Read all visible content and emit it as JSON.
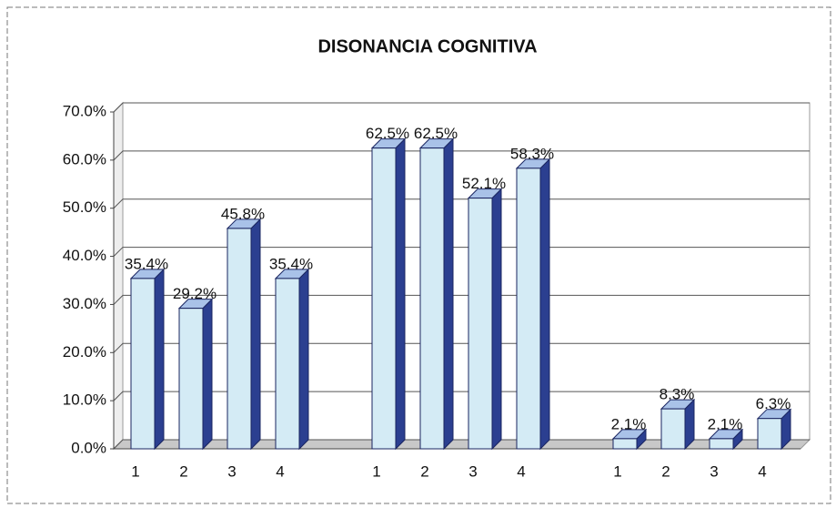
{
  "chart_data": {
    "type": "bar3d",
    "title": "DISONANCIA COGNITIVA",
    "categories": [
      "1",
      "2",
      "3",
      "4",
      "1",
      "2",
      "3",
      "4",
      "1",
      "2",
      "3",
      "4"
    ],
    "values": [
      35.4,
      29.2,
      45.8,
      35.4,
      62.5,
      62.5,
      52.1,
      58.3,
      2.1,
      8.3,
      2.1,
      6.3
    ],
    "value_labels": [
      "35.4%",
      "29.2%",
      "45.8%",
      "35.4%",
      "62.5%",
      "62.5%",
      "52.1%",
      "58.3%",
      "2.1%",
      "8.3%",
      "2.1%",
      "6.3%"
    ],
    "color": "#d4ebf5",
    "ylim": [
      0,
      70
    ],
    "yticks": [
      {
        "value": 0,
        "label": "0.0%"
      },
      {
        "value": 10,
        "label": "10.0%"
      },
      {
        "value": 20,
        "label": "20.0%"
      },
      {
        "value": 30,
        "label": "30.0%"
      },
      {
        "value": 40,
        "label": "40.0%"
      },
      {
        "value": 50,
        "label": "50.0%"
      },
      {
        "value": 60,
        "label": "60.0%"
      },
      {
        "value": 70,
        "label": "70.0%"
      }
    ],
    "grid": true
  }
}
